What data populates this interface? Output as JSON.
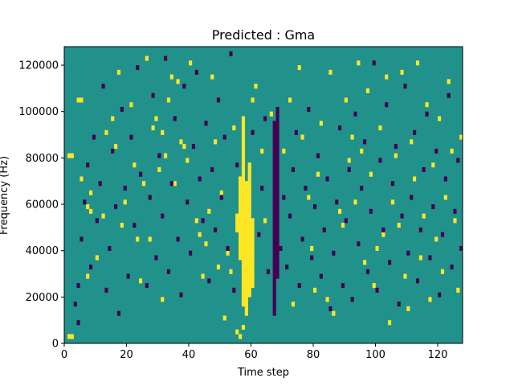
{
  "chart_data": {
    "type": "heatmap",
    "title": "Predicted : Gma",
    "xlabel": "Time step",
    "ylabel": "Frequency (Hz)",
    "xlim": [
      0,
      128
    ],
    "ylim": [
      0,
      128000
    ],
    "xticks": [
      0,
      20,
      40,
      60,
      80,
      100,
      120
    ],
    "yticks": [
      0,
      20000,
      40000,
      60000,
      80000,
      100000,
      120000
    ],
    "n_time_steps": 128,
    "n_freq_bins": 64,
    "colors": {
      "background": "#21918c",
      "high": "#fde725",
      "low": "#440154"
    },
    "high_cells": [
      [
        1,
        1
      ],
      [
        2,
        1
      ],
      [
        1,
        40
      ],
      [
        2,
        40
      ],
      [
        4,
        52
      ],
      [
        5,
        52
      ],
      [
        5,
        35
      ],
      [
        7,
        29
      ],
      [
        7,
        14
      ],
      [
        8,
        28
      ],
      [
        8,
        32
      ],
      [
        10,
        18
      ],
      [
        12,
        27
      ],
      [
        13,
        45
      ],
      [
        15,
        48
      ],
      [
        16,
        42
      ],
      [
        17,
        58
      ],
      [
        18,
        25
      ],
      [
        19,
        30
      ],
      [
        21,
        51
      ],
      [
        22,
        38
      ],
      [
        23,
        22
      ],
      [
        24,
        13
      ],
      [
        25,
        34
      ],
      [
        26,
        61
      ],
      [
        27,
        22
      ],
      [
        28,
        46
      ],
      [
        29,
        48
      ],
      [
        30,
        37
      ],
      [
        31,
        9
      ],
      [
        31,
        45
      ],
      [
        32,
        40
      ],
      [
        33,
        52
      ],
      [
        34,
        57
      ],
      [
        35,
        34
      ],
      [
        36,
        56
      ],
      [
        37,
        43
      ],
      [
        38,
        42
      ],
      [
        39,
        39
      ],
      [
        40,
        60
      ],
      [
        42,
        26
      ],
      [
        43,
        23
      ],
      [
        44,
        14
      ],
      [
        45,
        21
      ],
      [
        46,
        28
      ],
      [
        47,
        57
      ],
      [
        48,
        43
      ],
      [
        49,
        16
      ],
      [
        50,
        32
      ],
      [
        51,
        5
      ],
      [
        52,
        19
      ],
      [
        53,
        15
      ],
      [
        54,
        46
      ],
      [
        55,
        2
      ],
      [
        56,
        1
      ],
      [
        57,
        3
      ],
      [
        58,
        30
      ],
      [
        59,
        17
      ],
      [
        60,
        52
      ],
      [
        61,
        55
      ],
      [
        63,
        41
      ],
      [
        64,
        26
      ],
      [
        66,
        49
      ],
      [
        67,
        14
      ],
      [
        70,
        41
      ],
      [
        72,
        52
      ],
      [
        73,
        8
      ],
      [
        75,
        59
      ],
      [
        76,
        44
      ],
      [
        78,
        31
      ],
      [
        79,
        20
      ],
      [
        80,
        11
      ],
      [
        81,
        36
      ],
      [
        82,
        47
      ],
      [
        84,
        9
      ],
      [
        85,
        58
      ],
      [
        86,
        6
      ],
      [
        88,
        28
      ],
      [
        89,
        25
      ],
      [
        90,
        52
      ],
      [
        91,
        39
      ],
      [
        92,
        44
      ],
      [
        93,
        30
      ],
      [
        94,
        60
      ],
      [
        95,
        41
      ],
      [
        96,
        17
      ],
      [
        97,
        54
      ],
      [
        98,
        36
      ],
      [
        99,
        12
      ],
      [
        100,
        20
      ],
      [
        101,
        46
      ],
      [
        102,
        23
      ],
      [
        103,
        57
      ],
      [
        104,
        4
      ],
      [
        105,
        30
      ],
      [
        106,
        40
      ],
      [
        107,
        25
      ],
      [
        108,
        58
      ],
      [
        109,
        14
      ],
      [
        110,
        7
      ],
      [
        111,
        43
      ],
      [
        112,
        35
      ],
      [
        113,
        60
      ],
      [
        114,
        18
      ],
      [
        115,
        27
      ],
      [
        116,
        51
      ],
      [
        117,
        9
      ],
      [
        118,
        38
      ],
      [
        119,
        22
      ],
      [
        120,
        48
      ],
      [
        121,
        15
      ],
      [
        122,
        31
      ],
      [
        123,
        56
      ],
      [
        124,
        41
      ],
      [
        125,
        26
      ],
      [
        126,
        11
      ],
      [
        127,
        44
      ],
      [
        55,
        24
      ],
      [
        55,
        25
      ],
      [
        55,
        26
      ],
      [
        55,
        27
      ],
      [
        56,
        18
      ],
      [
        56,
        19
      ],
      [
        56,
        20
      ],
      [
        56,
        21
      ],
      [
        56,
        22
      ],
      [
        56,
        23
      ],
      [
        56,
        24
      ],
      [
        56,
        25
      ],
      [
        56,
        26
      ],
      [
        56,
        27
      ],
      [
        56,
        28
      ],
      [
        56,
        29
      ],
      [
        56,
        30
      ],
      [
        56,
        31
      ],
      [
        56,
        32
      ],
      [
        56,
        33
      ],
      [
        56,
        34
      ],
      [
        56,
        35
      ],
      [
        57,
        8
      ],
      [
        57,
        9
      ],
      [
        57,
        10
      ],
      [
        57,
        11
      ],
      [
        57,
        12
      ],
      [
        57,
        13
      ],
      [
        57,
        14
      ],
      [
        57,
        15
      ],
      [
        57,
        16
      ],
      [
        57,
        17
      ],
      [
        57,
        18
      ],
      [
        57,
        19
      ],
      [
        57,
        20
      ],
      [
        57,
        21
      ],
      [
        57,
        22
      ],
      [
        57,
        23
      ],
      [
        57,
        24
      ],
      [
        57,
        25
      ],
      [
        57,
        26
      ],
      [
        57,
        27
      ],
      [
        57,
        28
      ],
      [
        57,
        29
      ],
      [
        57,
        30
      ],
      [
        57,
        31
      ],
      [
        57,
        32
      ],
      [
        57,
        33
      ],
      [
        57,
        34
      ],
      [
        57,
        35
      ],
      [
        57,
        36
      ],
      [
        57,
        37
      ],
      [
        57,
        38
      ],
      [
        57,
        39
      ],
      [
        57,
        40
      ],
      [
        57,
        41
      ],
      [
        57,
        42
      ],
      [
        57,
        43
      ],
      [
        57,
        44
      ],
      [
        57,
        45
      ],
      [
        57,
        46
      ],
      [
        57,
        47
      ],
      [
        57,
        48
      ],
      [
        58,
        6
      ],
      [
        58,
        7
      ],
      [
        58,
        8
      ],
      [
        58,
        9
      ],
      [
        58,
        10
      ],
      [
        58,
        11
      ],
      [
        58,
        12
      ],
      [
        58,
        13
      ],
      [
        58,
        14
      ],
      [
        58,
        15
      ],
      [
        58,
        16
      ],
      [
        58,
        17
      ],
      [
        58,
        18
      ],
      [
        58,
        19
      ],
      [
        58,
        20
      ],
      [
        58,
        21
      ],
      [
        58,
        22
      ],
      [
        58,
        23
      ],
      [
        58,
        24
      ],
      [
        58,
        25
      ],
      [
        58,
        26
      ],
      [
        58,
        27
      ],
      [
        58,
        28
      ],
      [
        58,
        29
      ],
      [
        58,
        30
      ],
      [
        58,
        31
      ],
      [
        58,
        32
      ],
      [
        58,
        33
      ],
      [
        58,
        34
      ],
      [
        59,
        10
      ],
      [
        59,
        11
      ],
      [
        59,
        12
      ],
      [
        59,
        13
      ],
      [
        59,
        14
      ],
      [
        59,
        15
      ],
      [
        59,
        16
      ],
      [
        59,
        17
      ],
      [
        59,
        18
      ],
      [
        59,
        19
      ],
      [
        59,
        20
      ],
      [
        59,
        21
      ],
      [
        59,
        22
      ],
      [
        59,
        23
      ],
      [
        59,
        24
      ],
      [
        59,
        25
      ],
      [
        59,
        26
      ],
      [
        59,
        27
      ],
      [
        59,
        28
      ],
      [
        59,
        29
      ],
      [
        59,
        30
      ],
      [
        59,
        31
      ],
      [
        59,
        32
      ],
      [
        59,
        33
      ],
      [
        59,
        34
      ],
      [
        59,
        35
      ],
      [
        59,
        36
      ],
      [
        59,
        37
      ],
      [
        59,
        38
      ],
      [
        60,
        12
      ],
      [
        60,
        13
      ],
      [
        60,
        14
      ],
      [
        60,
        15
      ],
      [
        60,
        16
      ],
      [
        60,
        17
      ],
      [
        60,
        18
      ],
      [
        60,
        19
      ],
      [
        60,
        20
      ],
      [
        60,
        21
      ],
      [
        60,
        22
      ],
      [
        60,
        23
      ],
      [
        60,
        24
      ],
      [
        60,
        25
      ],
      [
        60,
        26
      ]
    ],
    "low_cells": [
      [
        3,
        8
      ],
      [
        4,
        12
      ],
      [
        4,
        4
      ],
      [
        5,
        22
      ],
      [
        6,
        30
      ],
      [
        7,
        38
      ],
      [
        8,
        16
      ],
      [
        9,
        44
      ],
      [
        10,
        26
      ],
      [
        11,
        34
      ],
      [
        12,
        55
      ],
      [
        13,
        11
      ],
      [
        14,
        20
      ],
      [
        15,
        41
      ],
      [
        16,
        29
      ],
      [
        17,
        6
      ],
      [
        18,
        50
      ],
      [
        19,
        33
      ],
      [
        20,
        14
      ],
      [
        21,
        44
      ],
      [
        22,
        25
      ],
      [
        23,
        59
      ],
      [
        24,
        36
      ],
      [
        26,
        12
      ],
      [
        27,
        31
      ],
      [
        28,
        53
      ],
      [
        29,
        18
      ],
      [
        30,
        40
      ],
      [
        31,
        27
      ],
      [
        32,
        61
      ],
      [
        33,
        15
      ],
      [
        34,
        34
      ],
      [
        35,
        48
      ],
      [
        36,
        22
      ],
      [
        37,
        10
      ],
      [
        38,
        55
      ],
      [
        39,
        30
      ],
      [
        40,
        19
      ],
      [
        41,
        42
      ],
      [
        42,
        58
      ],
      [
        43,
        35
      ],
      [
        44,
        26
      ],
      [
        45,
        47
      ],
      [
        46,
        13
      ],
      [
        47,
        37
      ],
      [
        48,
        24
      ],
      [
        49,
        52
      ],
      [
        50,
        31
      ],
      [
        51,
        44
      ],
      [
        52,
        20
      ],
      [
        53,
        62
      ],
      [
        54,
        11
      ],
      [
        55,
        38
      ],
      [
        60,
        45
      ],
      [
        62,
        23
      ],
      [
        63,
        33
      ],
      [
        64,
        48
      ],
      [
        65,
        15
      ],
      [
        69,
        20
      ],
      [
        70,
        31
      ],
      [
        71,
        16
      ],
      [
        72,
        27
      ],
      [
        73,
        37
      ],
      [
        74,
        45
      ],
      [
        75,
        12
      ],
      [
        76,
        22
      ],
      [
        77,
        33
      ],
      [
        78,
        50
      ],
      [
        79,
        18
      ],
      [
        80,
        29
      ],
      [
        81,
        40
      ],
      [
        82,
        14
      ],
      [
        83,
        24
      ],
      [
        84,
        35
      ],
      [
        85,
        7
      ],
      [
        86,
        19
      ],
      [
        87,
        30
      ],
      [
        88,
        46
      ],
      [
        89,
        12
      ],
      [
        90,
        26
      ],
      [
        91,
        37
      ],
      [
        92,
        9
      ],
      [
        93,
        49
      ],
      [
        94,
        21
      ],
      [
        95,
        33
      ],
      [
        96,
        43
      ],
      [
        97,
        15
      ],
      [
        98,
        28
      ],
      [
        99,
        60
      ],
      [
        100,
        11
      ],
      [
        101,
        39
      ],
      [
        102,
        24
      ],
      [
        103,
        51
      ],
      [
        104,
        17
      ],
      [
        105,
        34
      ],
      [
        106,
        42
      ],
      [
        107,
        8
      ],
      [
        108,
        27
      ],
      [
        109,
        55
      ],
      [
        110,
        19
      ],
      [
        111,
        31
      ],
      [
        112,
        45
      ],
      [
        113,
        13
      ],
      [
        114,
        24
      ],
      [
        115,
        37
      ],
      [
        116,
        49
      ],
      [
        117,
        18
      ],
      [
        118,
        29
      ],
      [
        119,
        41
      ],
      [
        120,
        10
      ],
      [
        121,
        23
      ],
      [
        122,
        35
      ],
      [
        123,
        53
      ],
      [
        124,
        16
      ],
      [
        125,
        28
      ],
      [
        126,
        39
      ],
      [
        127,
        20
      ],
      [
        67,
        6
      ],
      [
        67,
        7
      ],
      [
        67,
        8
      ],
      [
        67,
        9
      ],
      [
        67,
        10
      ],
      [
        67,
        11
      ],
      [
        67,
        12
      ],
      [
        67,
        13
      ],
      [
        67,
        14
      ],
      [
        67,
        15
      ],
      [
        67,
        16
      ],
      [
        67,
        17
      ],
      [
        67,
        18
      ],
      [
        67,
        19
      ],
      [
        67,
        20
      ],
      [
        67,
        21
      ],
      [
        67,
        22
      ],
      [
        67,
        23
      ],
      [
        67,
        24
      ],
      [
        67,
        25
      ],
      [
        67,
        26
      ],
      [
        67,
        27
      ],
      [
        67,
        28
      ],
      [
        67,
        29
      ],
      [
        67,
        30
      ],
      [
        67,
        31
      ],
      [
        67,
        32
      ],
      [
        67,
        33
      ],
      [
        67,
        34
      ],
      [
        67,
        35
      ],
      [
        67,
        36
      ],
      [
        67,
        37
      ],
      [
        67,
        38
      ],
      [
        67,
        39
      ],
      [
        67,
        40
      ],
      [
        67,
        41
      ],
      [
        67,
        42
      ],
      [
        67,
        43
      ],
      [
        67,
        44
      ],
      [
        67,
        45
      ],
      [
        67,
        46
      ],
      [
        67,
        47
      ],
      [
        68,
        14
      ],
      [
        68,
        15
      ],
      [
        68,
        16
      ],
      [
        68,
        17
      ],
      [
        68,
        18
      ],
      [
        68,
        19
      ],
      [
        68,
        20
      ],
      [
        68,
        21
      ],
      [
        68,
        22
      ],
      [
        68,
        23
      ],
      [
        68,
        24
      ],
      [
        68,
        25
      ],
      [
        68,
        26
      ],
      [
        68,
        27
      ],
      [
        68,
        28
      ],
      [
        68,
        29
      ],
      [
        68,
        30
      ],
      [
        68,
        31
      ],
      [
        68,
        32
      ],
      [
        68,
        33
      ],
      [
        68,
        34
      ],
      [
        68,
        35
      ],
      [
        68,
        36
      ],
      [
        68,
        37
      ],
      [
        68,
        38
      ],
      [
        68,
        39
      ],
      [
        68,
        40
      ],
      [
        68,
        41
      ],
      [
        68,
        42
      ],
      [
        68,
        43
      ],
      [
        68,
        44
      ],
      [
        68,
        45
      ],
      [
        68,
        46
      ],
      [
        68,
        47
      ],
      [
        68,
        48
      ],
      [
        68,
        49
      ],
      [
        68,
        50
      ]
    ]
  }
}
